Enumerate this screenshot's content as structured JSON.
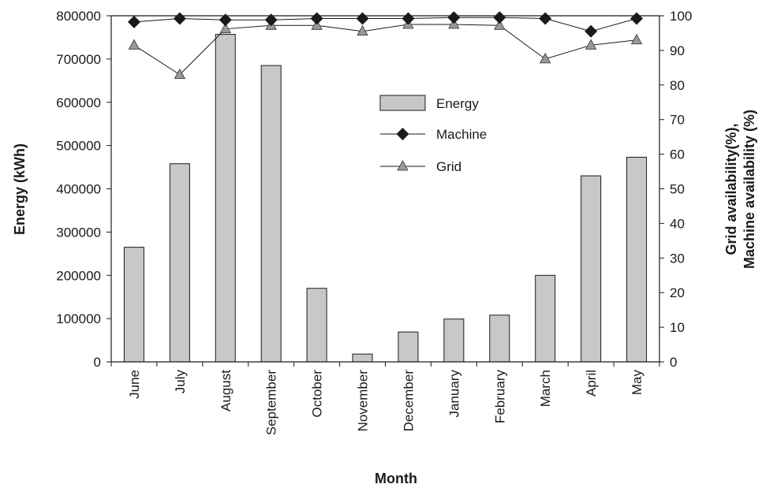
{
  "chart_data": {
    "type": "bar",
    "categories": [
      "June",
      "July",
      "August",
      "September",
      "October",
      "November",
      "December",
      "January",
      "February",
      "March",
      "April",
      "May"
    ],
    "series": [
      {
        "name": "Energy",
        "type": "bar",
        "axis": "left",
        "color": "#c8c8c8",
        "values": [
          265000,
          458000,
          757000,
          685000,
          170000,
          18000,
          69000,
          99000,
          108000,
          200000,
          430000,
          473000
        ]
      },
      {
        "name": "Machine",
        "type": "line",
        "axis": "right",
        "color": "#1a1a1a",
        "marker": "diamond",
        "values": [
          98.2,
          99.2,
          98.8,
          98.8,
          99.2,
          99.2,
          99.2,
          99.5,
          99.5,
          99.2,
          95.5,
          99.2
        ]
      },
      {
        "name": "Grid",
        "type": "line",
        "axis": "right",
        "color": "#8a8a8a",
        "marker": "triangle",
        "values": [
          91.5,
          83,
          96.2,
          97.2,
          97.2,
          95.5,
          97.5,
          97.5,
          97.2,
          87.5,
          91.5,
          93
        ]
      }
    ],
    "xlabel": "Month",
    "ylabel": "Energy (kWh)",
    "y2label": [
      "Grid availability(%),",
      "Machine availability (%)"
    ],
    "ylim": [
      0,
      800000
    ],
    "y2lim": [
      0,
      100
    ],
    "yticks": [
      "0",
      "100000",
      "200000",
      "300000",
      "400000",
      "500000",
      "600000",
      "700000",
      "800000"
    ],
    "y2ticks": [
      "0",
      "10",
      "20",
      "30",
      "40",
      "50",
      "60",
      "70",
      "80",
      "90",
      "100"
    ],
    "grid": false,
    "legend_position": "top-right"
  }
}
